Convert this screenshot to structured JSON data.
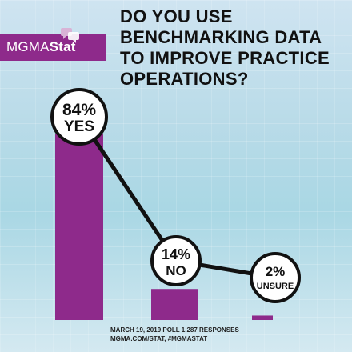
{
  "logo": {
    "prefix": "MGMA",
    "suffix": "Stat"
  },
  "title_lines": [
    "DO YOU USE",
    "BENCHMARKING DATA",
    "TO IMPROVE PRACTICE",
    "OPERATIONS?"
  ],
  "chart_data": {
    "type": "bar",
    "title": "DO YOU USE BENCHMARKING DATA TO IMPROVE PRACTICE OPERATIONS?",
    "categories": [
      "YES",
      "NO",
      "UNSURE"
    ],
    "values": [
      84,
      14,
      2
    ],
    "labels": [
      "84%",
      "14%",
      "2%"
    ],
    "unit": "%",
    "ylim": [
      0,
      100
    ],
    "grid": false,
    "colors": {
      "bar": "#8e2a8b",
      "line": "#111111",
      "circle_fill": "#ffffff"
    }
  },
  "footer": {
    "line1": "MARCH 19, 2019 POLL   1,287 RESPONSES",
    "line2": "MGMA.COM/STAT, #MGMASTAT"
  }
}
